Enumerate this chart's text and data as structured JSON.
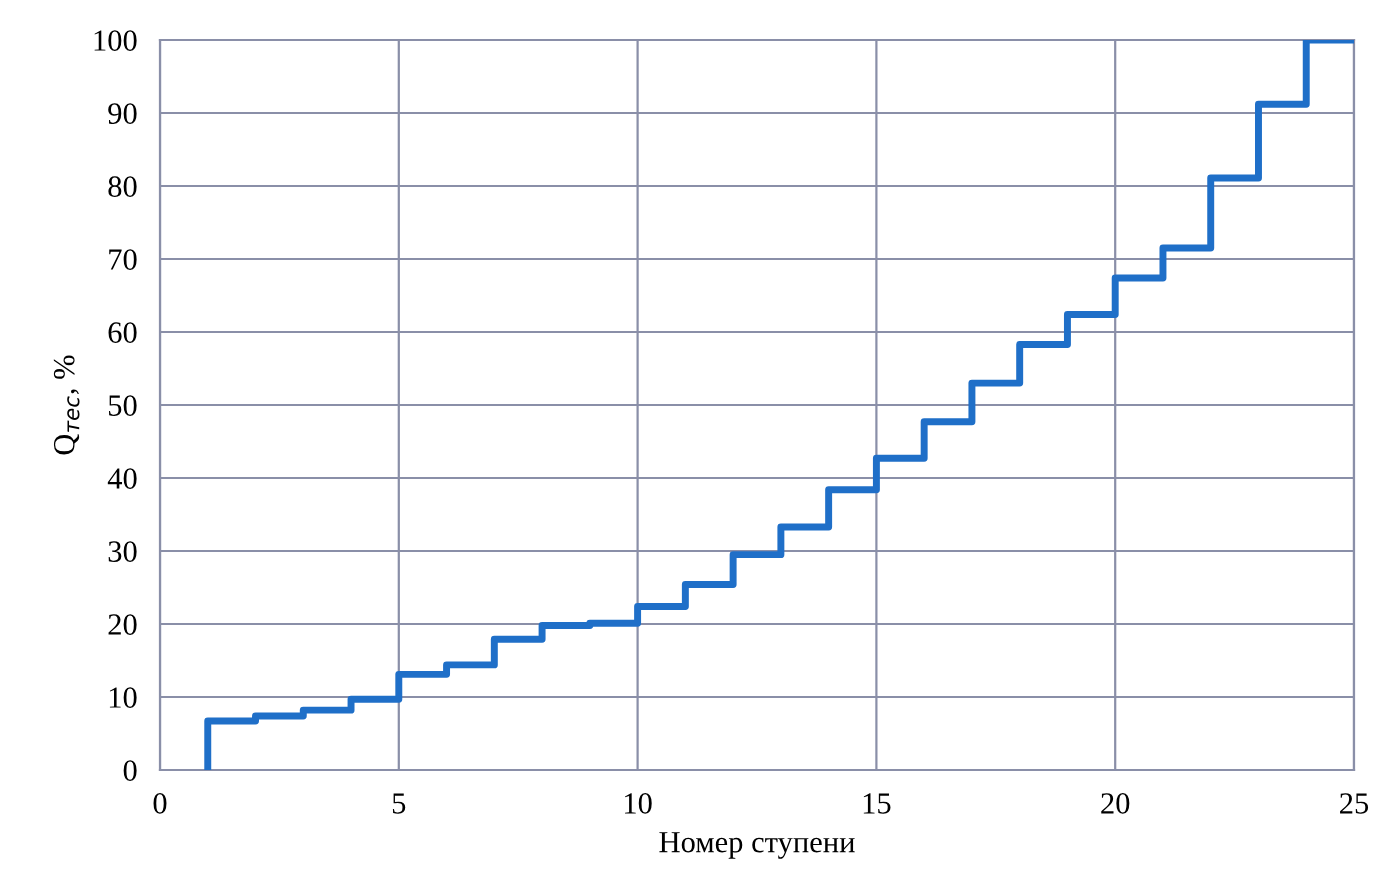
{
  "chart_data": {
    "type": "step",
    "xlabel": "Номер ступени",
    "ylabel": "Q$_{тес}$, %",
    "x": [
      1,
      1,
      2,
      3,
      4,
      5,
      6,
      7,
      8,
      9,
      10,
      11,
      12,
      13,
      14,
      15,
      16,
      17,
      18,
      19,
      20,
      21,
      22,
      23,
      24,
      25
    ],
    "series": [
      {
        "color": "#1f6fc8",
        "values": [
          0,
          6.7,
          7.4,
          8.2,
          9.7,
          13.1,
          14.4,
          17.9,
          19.8,
          20.1,
          22.4,
          25.4,
          29.5,
          33.3,
          38.4,
          42.7,
          47.7,
          53,
          58.3,
          62.4,
          67.4,
          71.5,
          81.1,
          91.2,
          100,
          100
        ]
      }
    ],
    "xlim": [
      0,
      25
    ],
    "ylim": [
      0,
      100
    ],
    "xticks": [
      0,
      5,
      10,
      15,
      20,
      25
    ],
    "yticks": [
      0,
      10,
      20,
      30,
      40,
      50,
      60,
      70,
      80,
      90,
      100
    ],
    "grid": true,
    "marker": "none",
    "line_style": "solid"
  }
}
